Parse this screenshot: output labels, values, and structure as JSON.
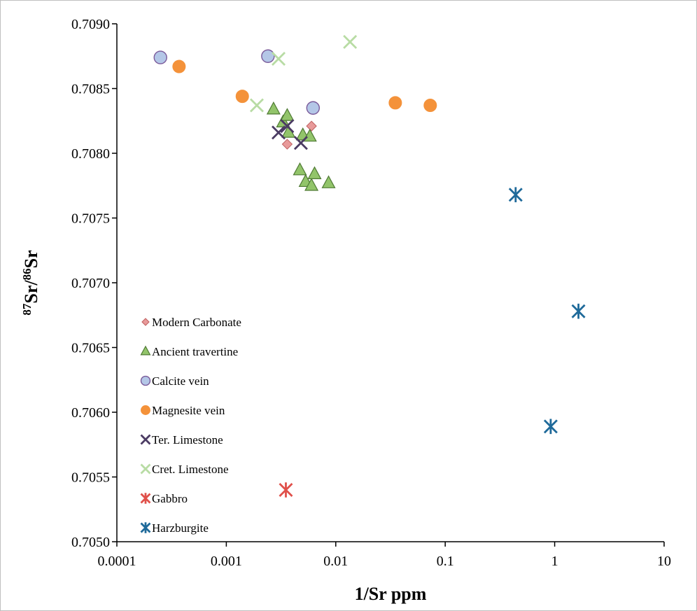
{
  "chart_data": {
    "type": "scatter",
    "title": "",
    "xlabel": "1/Sr ppm",
    "ylabel_parts": {
      "sup1": "87",
      "base1": "Sr/",
      "sup2": "86",
      "base2": "Sr"
    },
    "xscale": "log",
    "xlim": [
      0.0001,
      10
    ],
    "ylim": [
      0.705,
      0.709
    ],
    "x_ticks": [
      {
        "value": 0.0001,
        "label": "0.0001"
      },
      {
        "value": 0.001,
        "label": "0.001"
      },
      {
        "value": 0.01,
        "label": "0.01"
      },
      {
        "value": 0.1,
        "label": "0.1"
      },
      {
        "value": 1,
        "label": "1"
      },
      {
        "value": 10,
        "label": "10"
      }
    ],
    "y_ticks": [
      {
        "value": 0.705,
        "label": "0.7050"
      },
      {
        "value": 0.7055,
        "label": "0.7055"
      },
      {
        "value": 0.706,
        "label": "0.7060"
      },
      {
        "value": 0.7065,
        "label": "0.7065"
      },
      {
        "value": 0.707,
        "label": "0.7070"
      },
      {
        "value": 0.7075,
        "label": "0.7075"
      },
      {
        "value": 0.708,
        "label": "0.7080"
      },
      {
        "value": 0.7085,
        "label": "0.7085"
      },
      {
        "value": 0.709,
        "label": "0.7090"
      }
    ],
    "grid": false,
    "legend_placement": "left-middle",
    "series": [
      {
        "name": "Modern Carbonate",
        "marker": "diamond",
        "color": "#e89a9a",
        "stroke": "#c06060",
        "points": [
          [
            0.0036,
            0.70807
          ],
          [
            0.006,
            0.70821
          ]
        ]
      },
      {
        "name": "Ancient travertine",
        "marker": "triangle",
        "color": "#92c46a",
        "stroke": "#4f7a34",
        "points": [
          [
            0.0027,
            0.70834
          ],
          [
            0.0033,
            0.70824
          ],
          [
            0.0036,
            0.70829
          ],
          [
            0.0037,
            0.70816
          ],
          [
            0.005,
            0.70814
          ],
          [
            0.0058,
            0.70813
          ],
          [
            0.0047,
            0.70787
          ],
          [
            0.0053,
            0.70778
          ],
          [
            0.006,
            0.70775
          ],
          [
            0.0064,
            0.70784
          ],
          [
            0.0086,
            0.70777
          ]
        ]
      },
      {
        "name": "Calcite vein",
        "marker": "circle",
        "color": "#b4c7e7",
        "stroke": "#7a5a9a",
        "points": [
          [
            0.00025,
            0.70874
          ],
          [
            0.0024,
            0.70875
          ],
          [
            0.0062,
            0.70835
          ]
        ]
      },
      {
        "name": "Magnesite vein",
        "marker": "circle-filled",
        "color": "#f4923a",
        "stroke": "#f4923a",
        "points": [
          [
            0.00037,
            0.70867
          ],
          [
            0.0014,
            0.70844
          ],
          [
            0.035,
            0.70839
          ],
          [
            0.073,
            0.70837
          ]
        ]
      },
      {
        "name": "Ter. Limestone",
        "marker": "x",
        "color": "#4b3b63",
        "stroke": "#4b3b63",
        "points": [
          [
            0.003,
            0.70816
          ],
          [
            0.0036,
            0.70821
          ],
          [
            0.0048,
            0.70808
          ]
        ]
      },
      {
        "name": "Cret. Limestone",
        "marker": "x",
        "color": "#b8dca4",
        "stroke": "#b8dca4",
        "points": [
          [
            0.0019,
            0.70837
          ],
          [
            0.003,
            0.70873
          ],
          [
            0.0135,
            0.70886
          ]
        ]
      },
      {
        "name": "Gabbro",
        "marker": "star",
        "color": "#e0504a",
        "stroke": "#e0504a",
        "points": [
          [
            0.0035,
            0.7054
          ]
        ]
      },
      {
        "name": "Harzburgite",
        "marker": "star",
        "color": "#1f6a9a",
        "stroke": "#1f6a9a",
        "points": [
          [
            0.44,
            0.70768
          ],
          [
            1.65,
            0.70678
          ],
          [
            0.92,
            0.70589
          ]
        ]
      }
    ]
  }
}
